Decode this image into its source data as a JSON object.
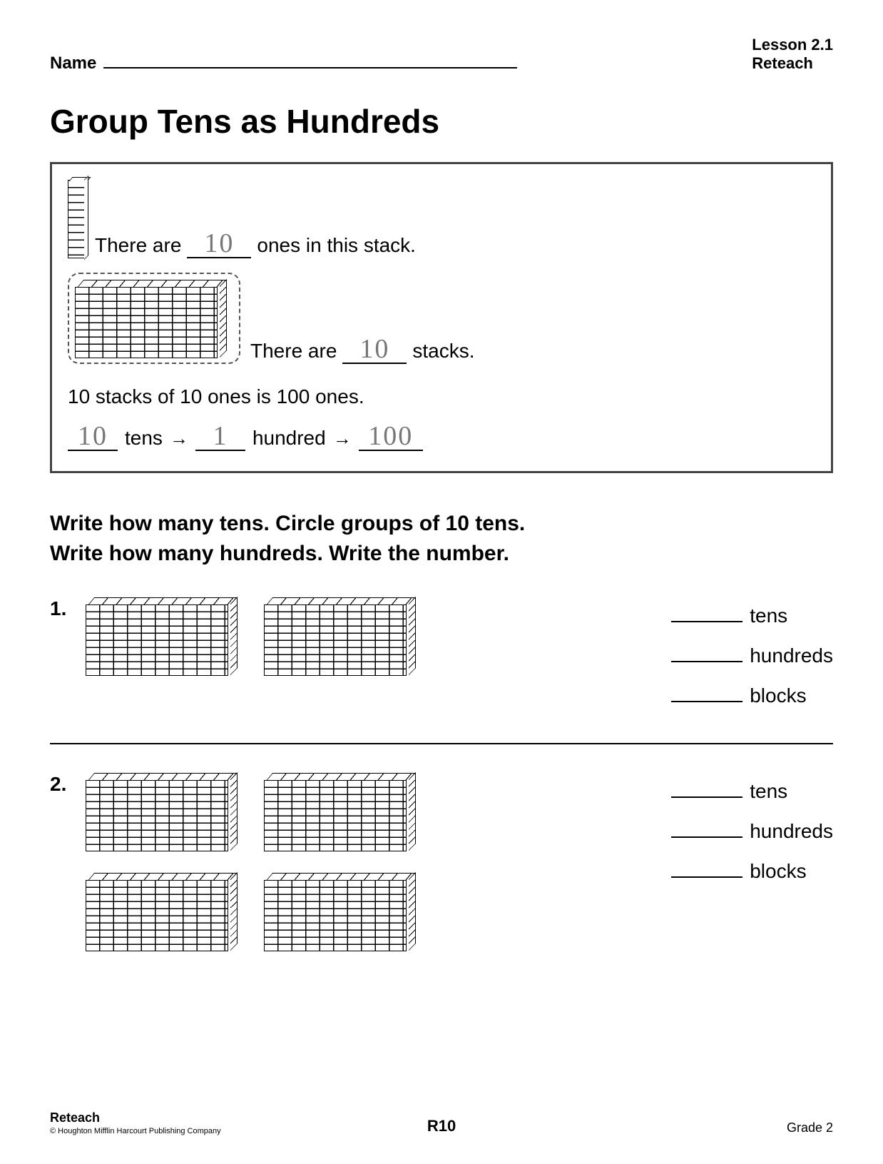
{
  "header": {
    "name_label": "Name",
    "lesson_line1": "Lesson 2.1",
    "lesson_line2": "Reteach"
  },
  "title": "Group Tens as Hundreds",
  "example": {
    "line1_before": "There are",
    "line1_value": "10",
    "line1_after": "ones in this stack.",
    "line2_before": "There are",
    "line2_value": "10",
    "line2_after": "stacks.",
    "static": "10 stacks of 10 ones is 100 ones.",
    "arrow_tens_value": "10",
    "arrow_tens_label": "tens",
    "arrow_hundred_value": "1",
    "arrow_hundred_label": "hundred",
    "arrow_total_value": "100"
  },
  "instructions_line1": "Write how many tens. Circle groups of 10 tens.",
  "instructions_line2": "Write how many hundreds. Write the number.",
  "problems": [
    {
      "num": "1.",
      "flats": 2
    },
    {
      "num": "2.",
      "flats": 4
    }
  ],
  "answer_labels": {
    "tens": "tens",
    "hundreds": "hundreds",
    "blocks": "blocks"
  },
  "footer": {
    "left": "Reteach",
    "copyright": "© Houghton Mifflin Harcourt Publishing Company",
    "center": "R10",
    "right": "Grade 2"
  },
  "colors": {
    "text": "#000000",
    "handwriting": "#777777",
    "background": "#ffffff",
    "border": "#444444"
  },
  "typography": {
    "title_fontsize": 46,
    "instr_fontsize": 30,
    "body_fontsize": 28,
    "handwrite_fontsize": 38,
    "footer_fontsize": 18
  }
}
